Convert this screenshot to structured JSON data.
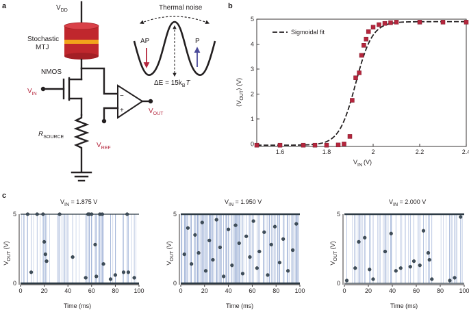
{
  "panels": {
    "a": "a",
    "b": "b",
    "c": "c"
  },
  "circuit": {
    "vdd": "V",
    "vdd_sub": "DD",
    "mtj_line1": "Stochastic",
    "mtj_line2": "MTJ",
    "nmos": "NMOS",
    "vin": "V",
    "vin_sub": "IN",
    "rsource": "R",
    "rsource_sub": "SOURCE",
    "vref": "V",
    "vref_sub": "REF",
    "vout": "V",
    "vout_sub": "OUT",
    "minus": "−",
    "plus": "+"
  },
  "energy": {
    "thermal_noise": "Thermal noise",
    "ap": "AP",
    "p": "P",
    "barrier_a": "ΔE = 15k",
    "barrier_sub": "B",
    "barrier_b": "T"
  },
  "colors": {
    "accent_red": "#b5263d",
    "mtj_body": "#c0272d",
    "mtj_band": "#f2a31b",
    "p_arrow": "#4a4a9a",
    "trace_blue": "#9aaed4"
  },
  "chart_data": [
    {
      "type": "scatter",
      "id": "b",
      "legend": "Sigmoidal fit",
      "legend_position": "top-left",
      "xlabel": "V",
      "xlabel_sub": "IN",
      "xlabel_unit": "(V)",
      "ylabel": "⟨V",
      "ylabel_sub": "OUT",
      "ylabel_unit": "⟩ (V)",
      "xlim": [
        1.5,
        2.4
      ],
      "ylim": [
        -0.1,
        5.0
      ],
      "xticks": [
        "1.6",
        "1.8",
        "2",
        "2.2",
        "2.4"
      ],
      "xtick_values": [
        1.6,
        1.8,
        2.0,
        2.2,
        2.4
      ],
      "yticks": [
        "0",
        "1",
        "2",
        "3",
        "4",
        "5"
      ],
      "ytick_values": [
        0,
        1,
        2,
        3,
        4,
        5
      ],
      "x": [
        1.5,
        1.6,
        1.7,
        1.75,
        1.8,
        1.85,
        1.875,
        1.9,
        1.91,
        1.925,
        1.94,
        1.95,
        1.96,
        1.97,
        1.98,
        2.0,
        2.025,
        2.05,
        2.075,
        2.1,
        2.2,
        2.3,
        2.4
      ],
      "values": [
        -0.05,
        -0.05,
        -0.05,
        -0.05,
        -0.05,
        -0.04,
        0.0,
        0.3,
        1.75,
        2.65,
        2.85,
        3.55,
        3.95,
        4.2,
        4.5,
        4.68,
        4.78,
        4.83,
        4.86,
        4.88,
        4.88,
        4.88,
        4.88
      ],
      "fit": {
        "x0": 1.925,
        "k": 28,
        "ymin": -0.05,
        "ymax": 4.9
      }
    },
    {
      "type": "scatter",
      "id": "c1",
      "title": "V",
      "title_sub": "IN",
      "title_value": " = 1.875 V",
      "xlabel": "Time (ms)",
      "ylabel": "V",
      "ylabel_sub": "OUT",
      "ylabel_unit": " (V)",
      "xlim": [
        0,
        100
      ],
      "ylim": [
        0,
        5
      ],
      "xticks": [
        "0",
        "20",
        "40",
        "60",
        "80",
        "100"
      ],
      "xtick_values": [
        0,
        20,
        40,
        60,
        80,
        100
      ],
      "yticks": [
        "0",
        "5"
      ],
      "ytick_values": [
        0,
        5
      ],
      "high_fraction": 0.08,
      "events": [
        [
          6,
          5
        ],
        [
          9,
          0.8
        ],
        [
          14,
          5
        ],
        [
          19,
          5
        ],
        [
          20,
          3.0
        ],
        [
          21,
          2.1
        ],
        [
          22,
          1.6
        ],
        [
          33,
          5
        ],
        [
          44,
          1.9
        ],
        [
          55,
          0.4
        ],
        [
          57,
          5
        ],
        [
          58,
          5
        ],
        [
          60,
          5
        ],
        [
          63,
          2.8
        ],
        [
          64,
          0.5
        ],
        [
          67,
          5
        ],
        [
          69,
          5
        ],
        [
          70,
          1.4
        ],
        [
          76,
          0.3
        ],
        [
          80,
          0.6
        ],
        [
          87,
          0.8
        ],
        [
          90,
          5
        ],
        [
          91,
          0.8
        ],
        [
          96,
          0.4
        ]
      ]
    },
    {
      "type": "scatter",
      "id": "c2",
      "title": "V",
      "title_sub": "IN",
      "title_value": " = 1.950 V",
      "xlabel": "Time (ms)",
      "ylabel": "V",
      "ylabel_sub": "OUT",
      "ylabel_unit": " (V)",
      "xlim": [
        0,
        100
      ],
      "ylim": [
        0,
        5
      ],
      "xticks": [
        "0",
        "20",
        "40",
        "60",
        "80",
        "100"
      ],
      "xtick_values": [
        0,
        20,
        40,
        60,
        80,
        100
      ],
      "yticks": [
        "0",
        "5"
      ],
      "ytick_values": [
        0,
        5
      ],
      "high_fraction": 0.5,
      "events": [
        [
          3,
          2.1
        ],
        [
          6,
          4.0
        ],
        [
          9,
          1.4
        ],
        [
          12,
          3.5
        ],
        [
          15,
          2.2
        ],
        [
          18,
          4.4
        ],
        [
          21,
          0.9
        ],
        [
          24,
          3.1
        ],
        [
          27,
          1.7
        ],
        [
          30,
          4.6
        ],
        [
          33,
          2.6
        ],
        [
          36,
          0.5
        ],
        [
          40,
          3.9
        ],
        [
          43,
          1.3
        ],
        [
          46,
          4.2
        ],
        [
          49,
          2.9
        ],
        [
          52,
          0.7
        ],
        [
          55,
          3.4
        ],
        [
          58,
          1.9
        ],
        [
          61,
          4.5
        ],
        [
          64,
          1.1
        ],
        [
          66,
          2.3
        ],
        [
          70,
          3.7
        ],
        [
          73,
          0.6
        ],
        [
          76,
          2.8
        ],
        [
          79,
          4.1
        ],
        [
          83,
          1.5
        ],
        [
          86,
          3.2
        ],
        [
          90,
          0.9
        ],
        [
          94,
          2.4
        ],
        [
          97,
          4.3
        ]
      ]
    },
    {
      "type": "scatter",
      "id": "c3",
      "title": "V",
      "title_sub": "IN",
      "title_value": " = 2.000 V",
      "xlabel": "Time (ms)",
      "ylabel": "V",
      "ylabel_sub": "OUT",
      "ylabel_unit": " (V)",
      "xlim": [
        0,
        100
      ],
      "ylim": [
        0,
        5
      ],
      "xticks": [
        "0",
        "20",
        "40",
        "60",
        "80",
        "100"
      ],
      "xtick_values": [
        0,
        20,
        40,
        60,
        80,
        100
      ],
      "yticks": [
        "0",
        "5"
      ],
      "ytick_values": [
        0,
        5
      ],
      "high_fraction": 0.92,
      "events": [
        [
          2,
          0.2
        ],
        [
          9,
          1.1
        ],
        [
          12,
          3.0
        ],
        [
          17,
          3.3
        ],
        [
          21,
          1.0
        ],
        [
          24,
          0.3
        ],
        [
          34,
          2.3
        ],
        [
          39,
          3.6
        ],
        [
          43,
          0.9
        ],
        [
          47,
          1.1
        ],
        [
          55,
          1.2
        ],
        [
          58,
          1.6
        ],
        [
          63,
          1.3
        ],
        [
          66,
          3.8
        ],
        [
          70,
          2.2
        ],
        [
          71,
          1.7
        ],
        [
          73,
          0.3
        ],
        [
          88,
          0.2
        ],
        [
          92,
          0.4
        ],
        [
          97,
          4.8
        ]
      ]
    }
  ]
}
